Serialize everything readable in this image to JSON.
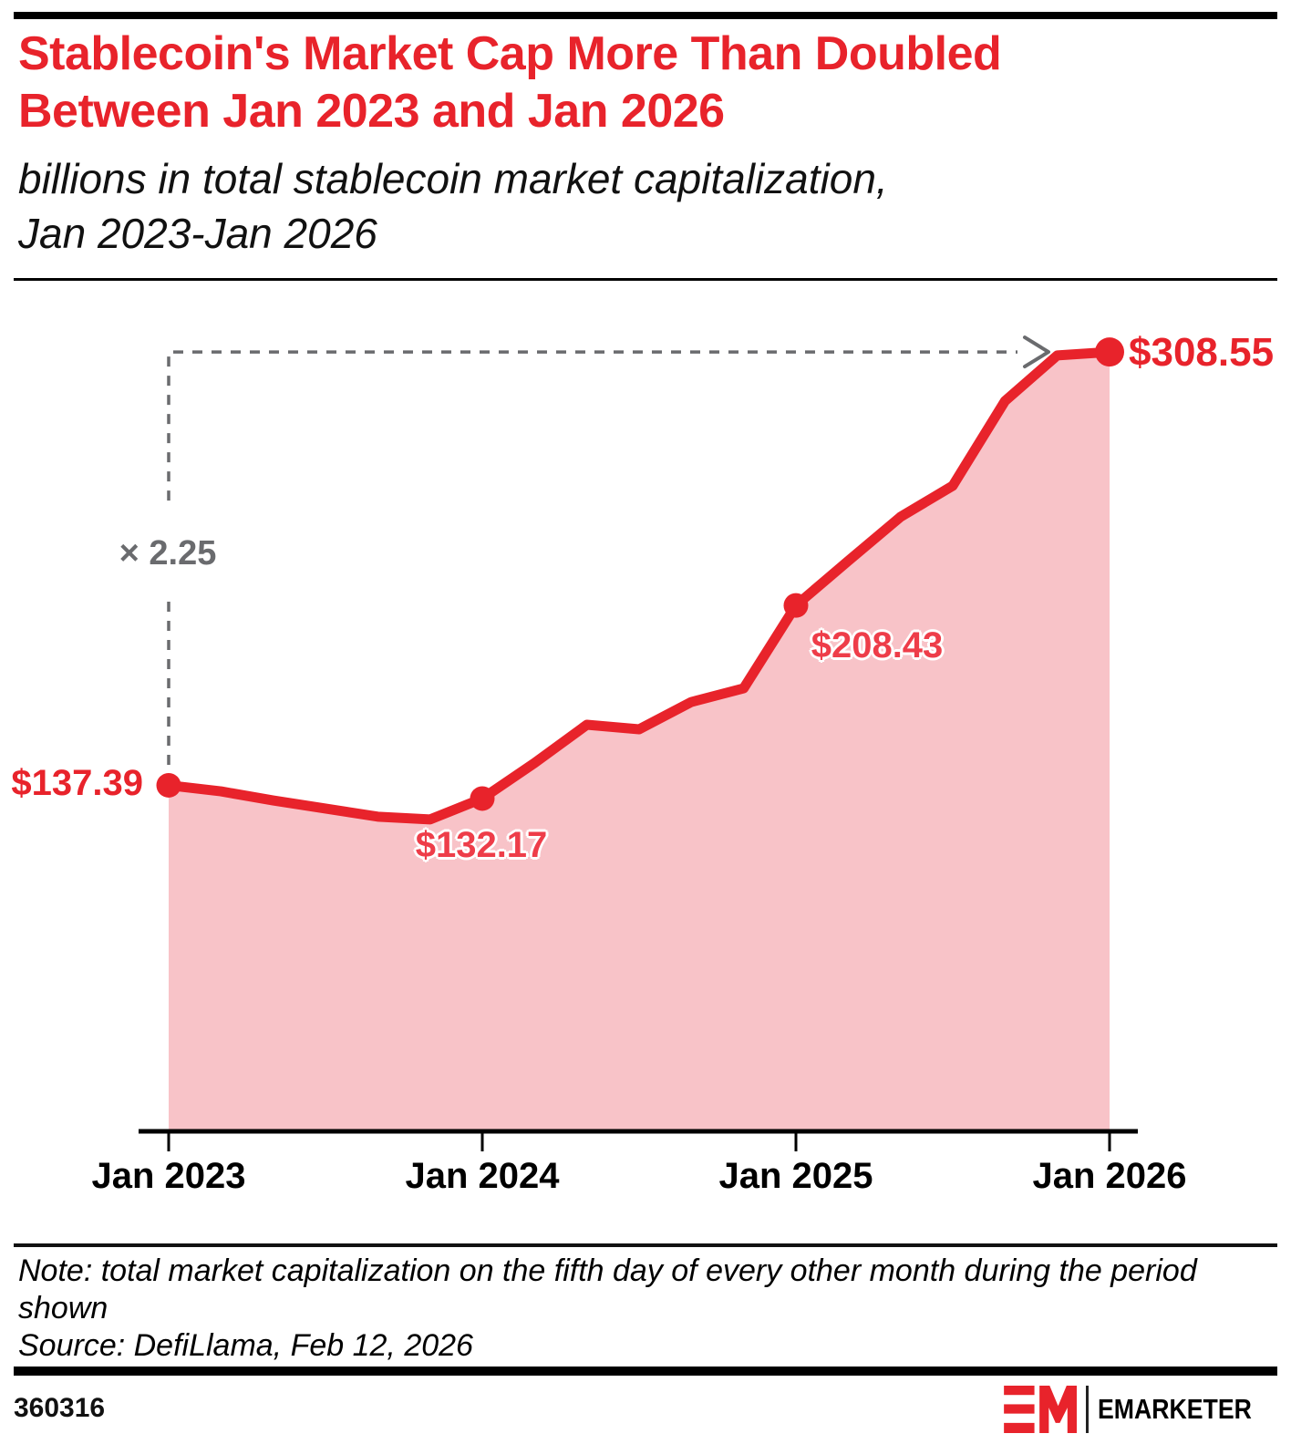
{
  "header": {
    "title_line1": "Stablecoin's Market Cap More Than Doubled",
    "title_line2": "Between Jan 2023 and Jan 2026",
    "subtitle_line1": "billions in total stablecoin market capitalization,",
    "subtitle_line2": "Jan 2023-Jan 2026"
  },
  "chart_data": {
    "type": "area",
    "title": "Stablecoin's Market Cap More Than Doubled Between Jan 2023 and Jan 2026",
    "subtitle": "billions in total stablecoin market capitalization, Jan 2023-Jan 2026",
    "x": [
      "Jan 2023",
      "Mar 2023",
      "May 2023",
      "Jul 2023",
      "Sep 2023",
      "Nov 2023",
      "Jan 2024",
      "Mar 2024",
      "May 2024",
      "Jul 2024",
      "Sep 2024",
      "Nov 2024",
      "Jan 2025",
      "Mar 2025",
      "May 2025",
      "Jul 2025",
      "Sep 2025",
      "Nov 2025",
      "Jan 2026"
    ],
    "values": [
      137.39,
      135.0,
      131.4,
      128.2,
      125.0,
      123.9,
      132.17,
      146.2,
      161.3,
      159.5,
      170.3,
      175.7,
      208.43,
      226.0,
      243.4,
      255.7,
      289.2,
      307.2,
      308.55
    ],
    "unit": "billions USD",
    "ylim": [
      0,
      320
    ],
    "grid": false,
    "legend": "none",
    "x_tick_labels": [
      "Jan 2023",
      "Jan 2024",
      "Jan 2025",
      "Jan 2026"
    ],
    "x_tick_indices": [
      0,
      6,
      12,
      18
    ],
    "labeled_points": [
      {
        "index": 0,
        "label": "$137.39",
        "value": 137.39,
        "position": "left"
      },
      {
        "index": 6,
        "label": "$132.17",
        "value": 132.17,
        "position": "below"
      },
      {
        "index": 12,
        "label": "$208.43",
        "value": 208.43,
        "position": "below-right"
      },
      {
        "index": 18,
        "label": "$308.55",
        "value": 308.55,
        "position": "right"
      }
    ],
    "annotation": {
      "text": "× 2.25",
      "from_index": 0,
      "to_index": 18
    },
    "line_color": "#e8232b",
    "fill_color": "#f8c3c8",
    "annotation_color": "#6a6b6e",
    "axis_color": "#000000"
  },
  "footnote": {
    "note_line1": "Note: total market capitalization on the fifth day of every other month during the period",
    "note_line2": "shown",
    "source": "Source: DefiLlama, Feb 12, 2026"
  },
  "footer": {
    "chart_id": "360316",
    "brand": "EMARKETER"
  }
}
